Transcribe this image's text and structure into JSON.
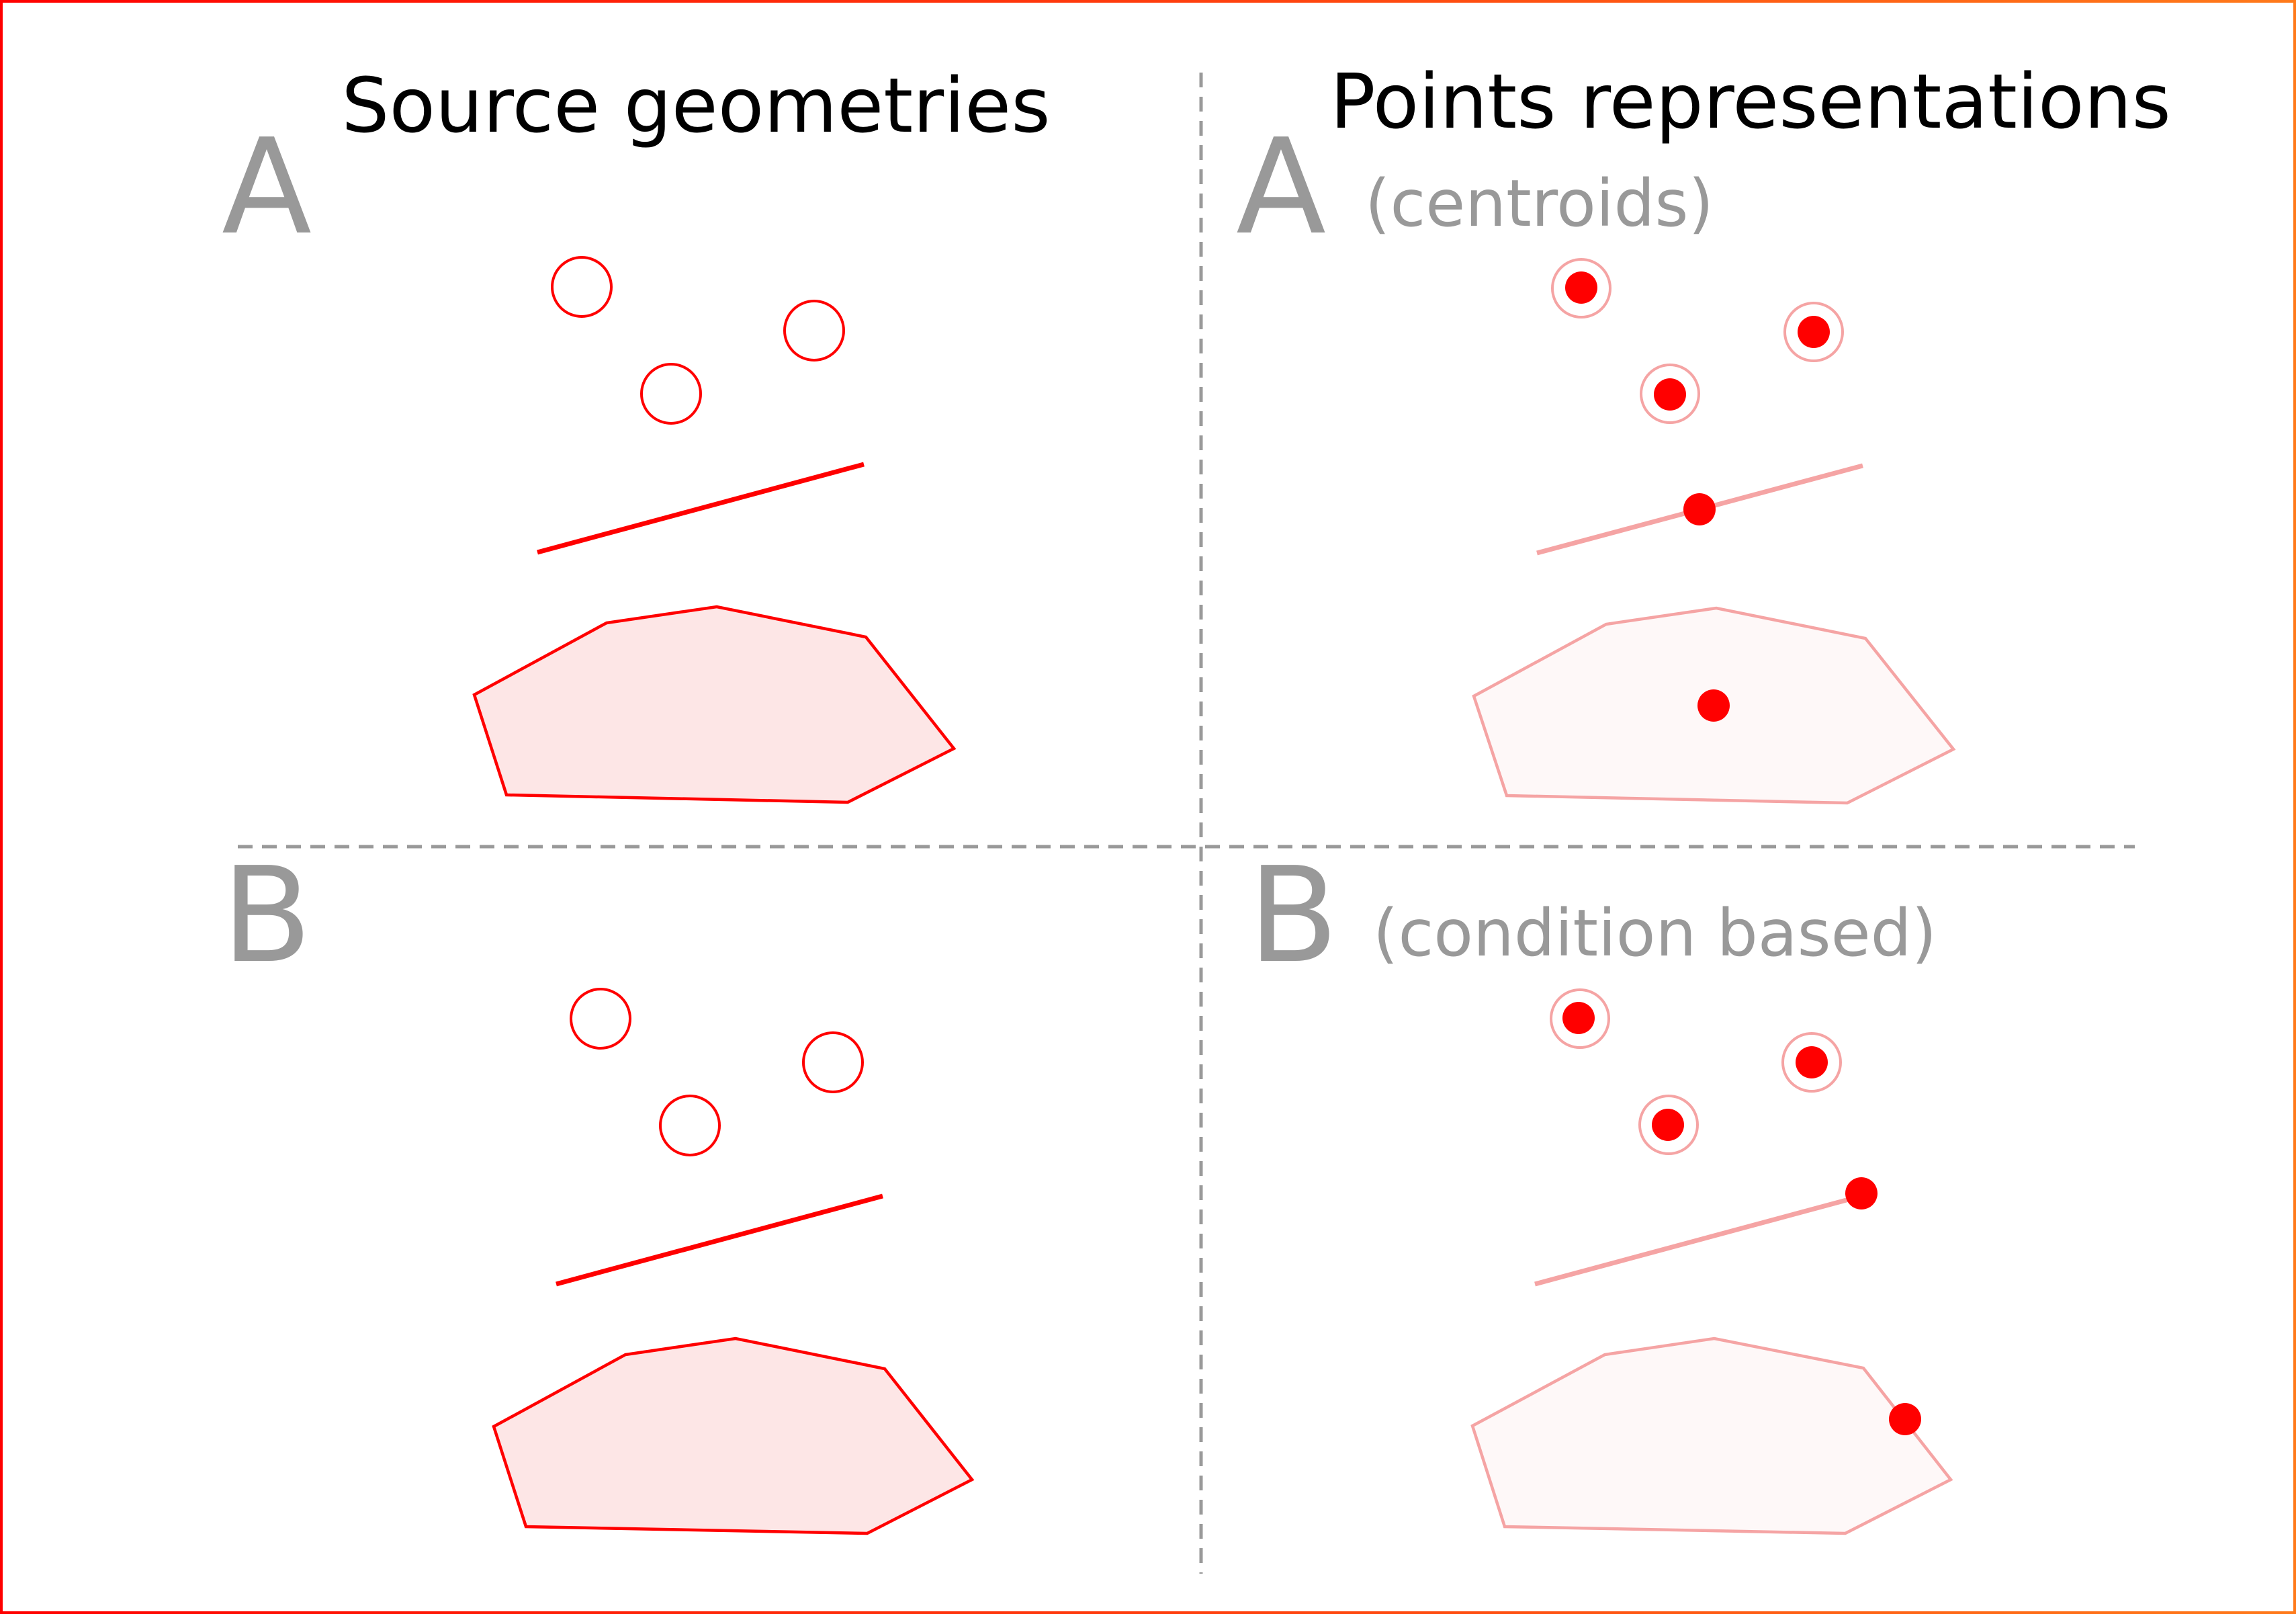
{
  "headings": {
    "left": "Source geometries",
    "right": "Points representations"
  },
  "panels": {
    "top_left": {
      "letter": "A"
    },
    "top_right": {
      "letter": "A",
      "caption": "(centroids)"
    },
    "bottom_left": {
      "letter": "B"
    },
    "bottom_right": {
      "letter": "B",
      "caption": "(condition based)"
    }
  },
  "colors": {
    "frame_gradient": [
      "#ff0000",
      "#ff7a1a"
    ],
    "geometry_stroke": "#ff0000",
    "polygon_fill": "#fde6e6",
    "faded_stroke": "#f5a4a4",
    "faded_fill": "#fef8f8",
    "point": "#ff0000",
    "label_gray": "#999999",
    "divider": "#999999"
  }
}
